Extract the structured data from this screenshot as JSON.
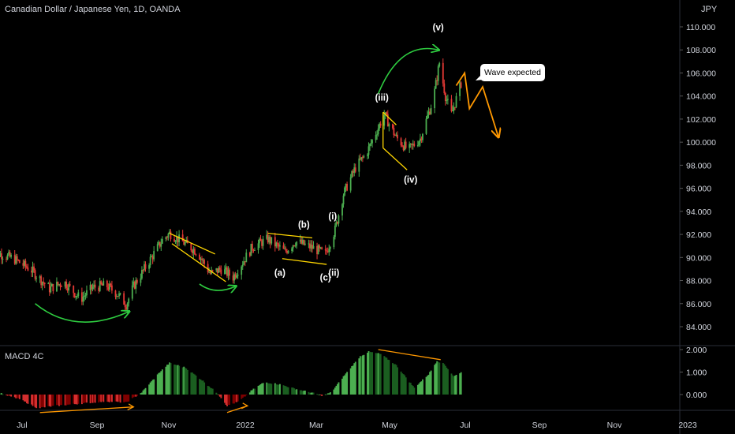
{
  "header": {
    "title": "Canadian Dollar / Japanese Yen, 1D, OANDA",
    "unit": "JPY"
  },
  "indicator": {
    "title": "MACD 4C"
  },
  "callout": {
    "text": "Wave expected"
  },
  "colors": {
    "up": "#26a69a",
    "candle_up": "#4caf50",
    "candle_down": "#e53935",
    "macd_green": "#4caf50",
    "macd_dark_green": "#1b5e20",
    "macd_red": "#d32f2f",
    "macd_dark_red": "#7f0000",
    "wave_green": "#2ecc40",
    "wave_orange": "#ff9800",
    "pattern_yellow": "#ffd600"
  },
  "chart_data": [
    {
      "type": "candlestick",
      "title": "Canadian Dollar / Japanese Yen, 1D, OANDA",
      "ylabel": "JPY",
      "ylim": [
        83,
        113
      ],
      "yticks": [
        "110.000",
        "108.000",
        "106.000",
        "104.000",
        "102.000",
        "100.000",
        "98.000",
        "96.000",
        "94.000",
        "92.000",
        "90.000",
        "88.000",
        "86.000",
        "84.000"
      ],
      "xticks": [
        "Jul",
        "Sep",
        "Nov",
        "2022",
        "Mar",
        "May",
        "Jul",
        "Sep",
        "Nov",
        "2023"
      ],
      "xrange": [
        "2021-06-01",
        "2023-01-01"
      ],
      "price_path": [
        [
          "2021-06-01",
          90.6
        ],
        [
          "2021-06-20",
          89.9
        ],
        [
          "2021-07-05",
          88.9
        ],
        [
          "2021-07-20",
          87.3
        ],
        [
          "2021-08-01",
          87.9
        ],
        [
          "2021-08-15",
          86.4
        ],
        [
          "2021-08-25",
          87.4
        ],
        [
          "2021-09-05",
          87.6
        ],
        [
          "2021-09-15",
          86.8
        ],
        [
          "2021-09-22",
          85.9
        ],
        [
          "2021-09-28",
          87.5
        ],
        [
          "2021-10-10",
          89.5
        ],
        [
          "2021-10-22",
          91.5
        ],
        [
          "2021-10-28",
          92.1
        ],
        [
          "2021-11-10",
          91.2
        ],
        [
          "2021-11-20",
          90.5
        ],
        [
          "2021-12-01",
          88.6
        ],
        [
          "2021-12-10",
          89.0
        ],
        [
          "2021-12-20",
          88.3
        ],
        [
          "2022-01-05",
          90.9
        ],
        [
          "2022-01-18",
          91.6
        ],
        [
          "2022-02-01",
          90.5
        ],
        [
          "2022-02-10",
          91.4
        ],
        [
          "2022-02-25",
          90.8
        ],
        [
          "2022-03-07",
          90.3
        ],
        [
          "2022-03-15",
          92.4
        ],
        [
          "2022-03-22",
          95.5
        ],
        [
          "2022-04-01",
          97.8
        ],
        [
          "2022-04-10",
          99.0
        ],
        [
          "2022-04-25",
          102.4
        ],
        [
          "2022-05-05",
          100.4
        ],
        [
          "2022-05-15",
          99.3
        ],
        [
          "2022-05-25",
          100.3
        ],
        [
          "2022-06-05",
          103.8
        ],
        [
          "2022-06-10",
          106.9
        ],
        [
          "2022-06-15",
          104.0
        ],
        [
          "2022-06-20",
          102.4
        ],
        [
          "2022-06-28",
          105.1
        ]
      ],
      "annotations": {
        "wave_labels": [
          {
            "text": "(a)",
            "date": "2022-01-28",
            "price": 88.4
          },
          {
            "text": "(b)",
            "date": "2022-02-17",
            "price": 92.6
          },
          {
            "text": "(c)",
            "date": "2022-03-07",
            "price": 88.0
          },
          {
            "text": "(i)",
            "date": "2022-03-13",
            "price": 93.3
          },
          {
            "text": "(ii)",
            "date": "2022-03-14",
            "price": 88.4
          },
          {
            "text": "(iii)",
            "date": "2022-04-23",
            "price": 103.6
          },
          {
            "text": "(iv)",
            "date": "2022-05-17",
            "price": 96.5
          },
          {
            "text": "(v)",
            "date": "2022-06-09",
            "price": 109.7
          }
        ],
        "projection": [
          [
            "2022-06-24",
            104.9
          ],
          [
            "2022-07-01",
            106.0
          ],
          [
            "2022-07-05",
            102.9
          ],
          [
            "2022-07-16",
            104.8
          ],
          [
            "2022-07-29",
            100.5
          ]
        ]
      }
    },
    {
      "type": "bar",
      "title": "MACD 4C",
      "ylim": [
        -1.4,
        2.3
      ],
      "yticks": [
        "2.000",
        "1.000",
        "0.000"
      ],
      "histogram_path": [
        [
          "2021-06-01",
          0.3
        ],
        [
          "2021-06-12",
          0.0
        ],
        [
          "2021-06-25",
          -0.2
        ],
        [
          "2021-07-10",
          -0.6
        ],
        [
          "2021-07-25",
          -0.5
        ],
        [
          "2021-08-15",
          -0.4
        ],
        [
          "2021-09-05",
          -0.3
        ],
        [
          "2021-09-22",
          -0.35
        ],
        [
          "2021-10-05",
          0.1
        ],
        [
          "2021-10-20",
          1.0
        ],
        [
          "2021-10-28",
          1.4
        ],
        [
          "2021-11-10",
          1.2
        ],
        [
          "2021-11-25",
          0.6
        ],
        [
          "2021-12-08",
          0.0
        ],
        [
          "2021-12-15",
          -0.5
        ],
        [
          "2021-12-25",
          -0.3
        ],
        [
          "2022-01-05",
          0.2
        ],
        [
          "2022-01-15",
          0.55
        ],
        [
          "2022-01-28",
          0.45
        ],
        [
          "2022-02-10",
          0.25
        ],
        [
          "2022-02-22",
          0.1
        ],
        [
          "2022-03-05",
          -0.05
        ],
        [
          "2022-03-12",
          0.1
        ],
        [
          "2022-03-22",
          0.8
        ],
        [
          "2022-04-05",
          1.7
        ],
        [
          "2022-04-12",
          1.9
        ],
        [
          "2022-04-22",
          1.8
        ],
        [
          "2022-05-05",
          1.3
        ],
        [
          "2022-05-20",
          0.3
        ],
        [
          "2022-06-01",
          0.9
        ],
        [
          "2022-06-08",
          1.5
        ],
        [
          "2022-06-14",
          1.35
        ],
        [
          "2022-06-22",
          0.8
        ],
        [
          "2022-06-28",
          1.0
        ]
      ],
      "trendlines_note": "divergence lines"
    }
  ]
}
